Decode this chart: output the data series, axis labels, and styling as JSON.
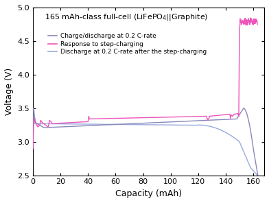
{
  "title": "165 mAh-class full-cell (LiFePO$_4$||Graphite)",
  "xlabel": "Capacity (mAh)",
  "ylabel": "Voltage (V)",
  "xlim": [
    0,
    168
  ],
  "ylim": [
    2.5,
    5.0
  ],
  "xticks": [
    0,
    20,
    40,
    60,
    80,
    100,
    120,
    140,
    160
  ],
  "yticks": [
    2.5,
    3.0,
    3.5,
    4.0,
    4.5,
    5.0
  ],
  "legend_entries": [
    "Charge/discharge at 0.2 C-rate",
    "Response to step-charging",
    "Discharge at 0.2 C-rate after the step-charging"
  ],
  "colors": {
    "charge_discharge": "#8888bb",
    "step_response": "#ee55bb",
    "discharge_after": "#99aadd"
  },
  "background_color": "#ffffff",
  "title_fontsize": 8.0,
  "label_fontsize": 9,
  "tick_fontsize": 8,
  "legend_fontsize": 6.5,
  "linewidth": 1.0
}
